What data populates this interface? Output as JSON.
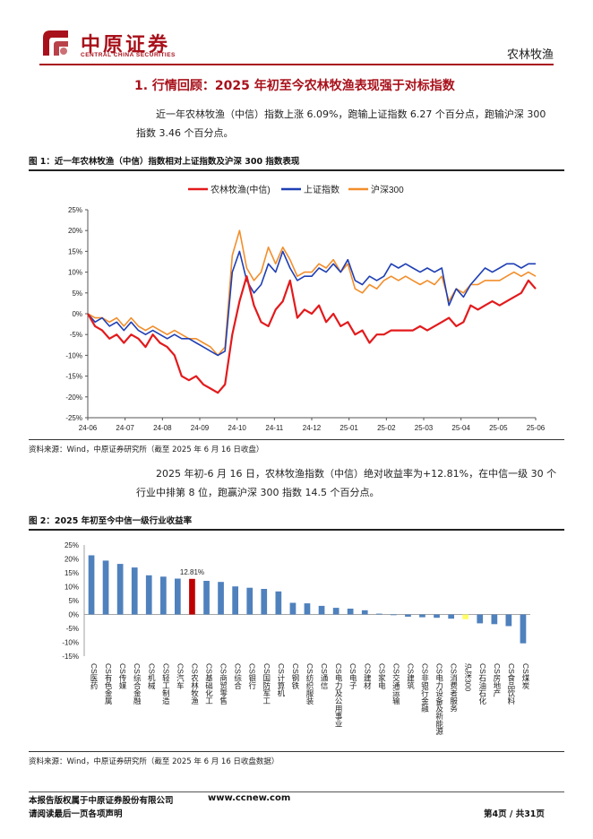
{
  "header": {
    "company_cn": "中原证券",
    "company_en": "CENTRAL CHINA SECURITIES",
    "section": "农林牧渔",
    "accent_color": "#a8111b"
  },
  "main": {
    "heading": "1. 行情回顾：2025 年初至今农林牧渔表现强于对标指数",
    "para1_line1": "近一年农林牧渔（中信）指数上涨 6.09%，跑输上证指数 6.27 个百分点，跑输沪深 300",
    "para1_line2": "指数 3.46 个百分点。",
    "para2_line1": "2025 年初-6 月 16 日，农林牧渔指数（中信）绝对收益率为+12.81%，在中信一级 30 个",
    "para2_line2": "行业中排第 8 位，跑赢沪深 300 指数 14.5 个百分点。"
  },
  "fig1": {
    "title": "图 1：近一年农林牧渔（中信）指数相对上证指数及沪深 300 指数表现",
    "source": "资料来源：Wind，中原证券研究所（截至 2025 年 6 月 16 日收盘）"
  },
  "fig2": {
    "title": "图 2：2025 年初至今中信一级行业收益率",
    "source": "资料来源：Wind，中原证券研究所（截至 2025 年 6 月 16 日收盘数据）"
  },
  "footer": {
    "copyright": "本报告版权属于中原证券股份有限公司",
    "url": "www.ccnew.com",
    "disclaimer": "请阅读最后一页各项声明",
    "page": "第4页 / 共31页"
  },
  "chart_data": [
    {
      "type": "line",
      "legend_position": "top",
      "x_ticks": [
        "24-06",
        "24-07",
        "24-08",
        "24-09",
        "24-10",
        "24-11",
        "24-12",
        "25-01",
        "25-02",
        "25-03",
        "25-04",
        "25-05",
        "25-06"
      ],
      "ylim": [
        -25,
        25
      ],
      "y_ticks": [
        "25%",
        "20%",
        "15%",
        "10%",
        "5%",
        "0%",
        "-5%",
        "-10%",
        "-15%",
        "-20%",
        "-25%"
      ],
      "series": [
        {
          "name": "农林牧渔(中信)",
          "color": "#e31a1c",
          "values": [
            0,
            -3,
            -4,
            -6,
            -5,
            -7,
            -5,
            -6,
            -8,
            -5,
            -7,
            -8,
            -10,
            -15,
            -16,
            -15,
            -17,
            -18,
            -19,
            -17,
            -5,
            3,
            9,
            2,
            -2,
            -3,
            1,
            3,
            8,
            -1,
            1,
            0,
            2,
            -2,
            0,
            -3,
            -2,
            -5,
            -4,
            -7,
            -5,
            -5,
            -4,
            -4,
            -4,
            -4,
            -3,
            -4,
            -3,
            -2,
            -1,
            -3,
            -2,
            2,
            1,
            2,
            3,
            2,
            3,
            4,
            5,
            8,
            6
          ]
        },
        {
          "name": "上证指数",
          "color": "#1f3fb4",
          "values": [
            0,
            -2,
            -1,
            -3,
            -2,
            -4,
            -2,
            -4,
            -5,
            -4,
            -5,
            -6,
            -5,
            -6,
            -6,
            -7,
            -8,
            -9,
            -10,
            -9,
            10,
            15,
            8,
            5,
            7,
            12,
            10,
            15,
            11,
            8,
            9,
            9,
            11,
            10,
            12,
            10,
            13,
            8,
            7,
            9,
            8,
            9,
            12,
            11,
            12,
            11,
            10,
            11,
            10,
            11,
            2,
            6,
            4,
            7,
            9,
            11,
            10,
            11,
            12,
            12,
            11,
            12,
            12
          ]
        },
        {
          "name": "沪深300",
          "color": "#f28e2b",
          "values": [
            0,
            -1,
            -1,
            -2,
            -1,
            -3,
            -1,
            -3,
            -4,
            -3,
            -4,
            -5,
            -4,
            -5,
            -6,
            -6,
            -7,
            -8,
            -10,
            -8,
            14,
            20,
            11,
            8,
            10,
            16,
            12,
            16,
            13,
            9,
            10,
            10,
            12,
            11,
            13,
            10,
            12,
            6,
            5,
            7,
            6,
            8,
            9,
            8,
            9,
            8,
            7,
            8,
            7,
            9,
            3,
            6,
            5,
            7,
            7,
            8,
            8,
            8,
            9,
            10,
            9,
            10,
            9
          ]
        }
      ]
    },
    {
      "type": "bar",
      "ylim": [
        -15,
        25
      ],
      "y_ticks": [
        "25%",
        "20%",
        "15%",
        "10%",
        "5%",
        "0%",
        "-5%",
        "-10%",
        "-15%"
      ],
      "annotation": "12.81%",
      "categories": [
        "CS医药",
        "CS有色金属",
        "CS传媒",
        "CS综合金融",
        "CS机械",
        "CS轻工制造",
        "CS汽车",
        "CS农林牧渔",
        "CS基础化工",
        "CS商贸零售",
        "CS综合",
        "CS银行",
        "CS国防军工",
        "CS计算机",
        "CS钢铁",
        "CS纺织服装",
        "CS通信",
        "CS电力及公用事业",
        "CS电子",
        "CS建材",
        "CS家电",
        "CS交通运输",
        "CS建筑",
        "CS非银行金融",
        "CS电力设备及新能源",
        "CS消费者服务",
        "沪深300",
        "CS石油石化",
        "CS房地产",
        "CS食品饮料",
        "CS煤炭"
      ],
      "values": [
        21.3,
        19.4,
        18.2,
        16.9,
        14.1,
        13.6,
        12.9,
        12.81,
        12.1,
        11.7,
        10.1,
        9.6,
        9.2,
        8.3,
        4.2,
        4.0,
        3.1,
        2.4,
        2.1,
        1.5,
        0.3,
        -0.2,
        -0.8,
        -1.0,
        -1.2,
        -1.5,
        -1.7,
        -3.2,
        -3.5,
        -4.2,
        -10.4
      ],
      "colors": {
        "default": "#4f81bd",
        "highlight": "#c00000",
        "benchmark": "#ffff66"
      }
    }
  ]
}
